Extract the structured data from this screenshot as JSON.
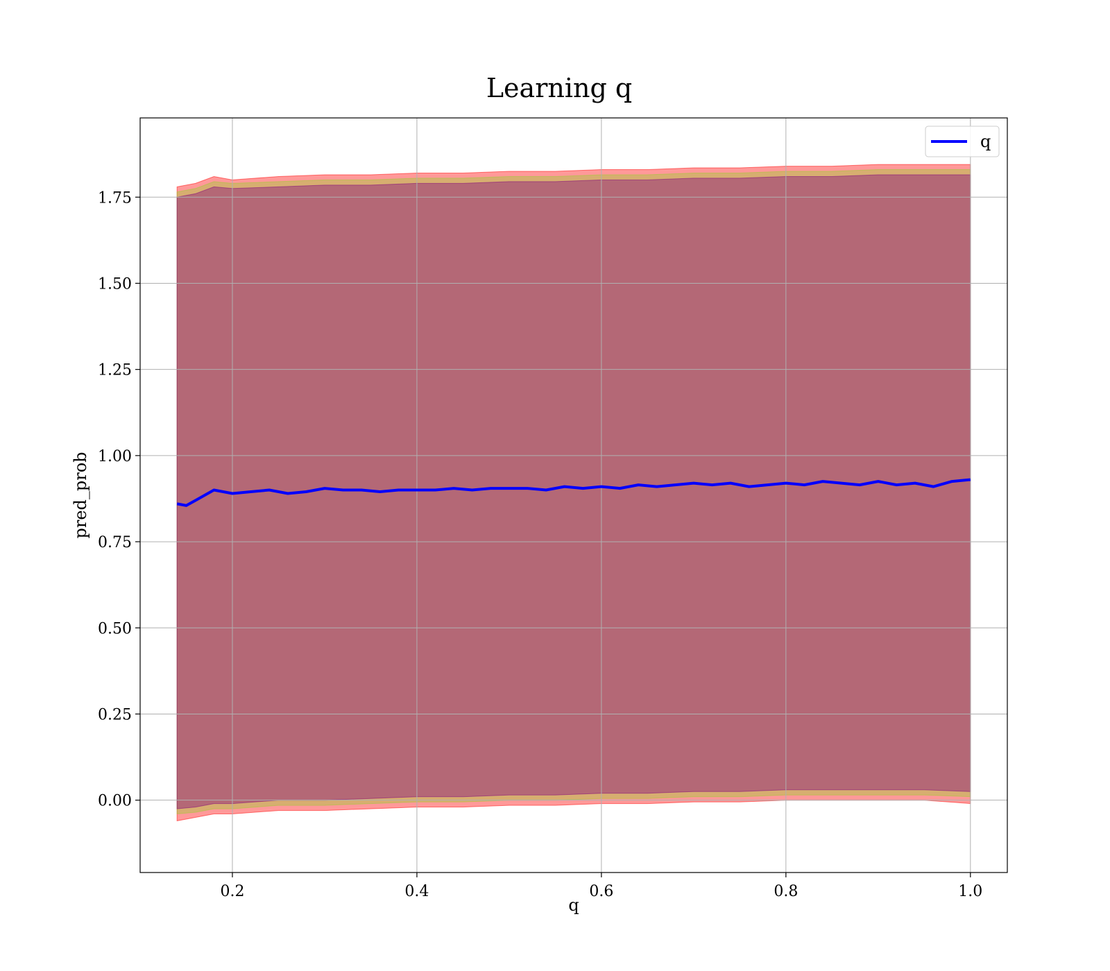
{
  "chart_data": {
    "type": "line",
    "title": "Learning q",
    "xlabel": "q",
    "ylabel": "pred_prob",
    "xlim": [
      0.1,
      1.04
    ],
    "ylim": [
      -0.21,
      1.98
    ],
    "xticks": [
      0.2,
      0.4,
      0.6,
      0.8,
      1.0
    ],
    "xtick_labels": [
      "0.2",
      "0.4",
      "0.6",
      "0.8",
      "1.0"
    ],
    "yticks": [
      0.0,
      0.25,
      0.5,
      0.75,
      1.0,
      1.25,
      1.5,
      1.75
    ],
    "ytick_labels": [
      "0.00",
      "0.25",
      "0.50",
      "0.75",
      "1.00",
      "1.25",
      "1.50",
      "1.75"
    ],
    "grid": true,
    "legend": {
      "position": "top-right",
      "entries": [
        {
          "label": "q",
          "color": "#0000ff"
        }
      ]
    },
    "series": [
      {
        "name": "q",
        "color": "#0000ff",
        "x": [
          0.14,
          0.15,
          0.16,
          0.17,
          0.18,
          0.2,
          0.22,
          0.24,
          0.26,
          0.28,
          0.3,
          0.32,
          0.34,
          0.36,
          0.38,
          0.4,
          0.42,
          0.44,
          0.46,
          0.48,
          0.5,
          0.52,
          0.54,
          0.56,
          0.58,
          0.6,
          0.62,
          0.64,
          0.66,
          0.68,
          0.7,
          0.72,
          0.74,
          0.76,
          0.78,
          0.8,
          0.82,
          0.84,
          0.86,
          0.88,
          0.9,
          0.92,
          0.94,
          0.96,
          0.98,
          1.0
        ],
        "y": [
          0.86,
          0.855,
          0.87,
          0.885,
          0.9,
          0.89,
          0.895,
          0.9,
          0.89,
          0.895,
          0.905,
          0.9,
          0.9,
          0.895,
          0.9,
          0.9,
          0.9,
          0.905,
          0.9,
          0.905,
          0.905,
          0.905,
          0.9,
          0.91,
          0.905,
          0.91,
          0.905,
          0.915,
          0.91,
          0.915,
          0.92,
          0.915,
          0.92,
          0.91,
          0.915,
          0.92,
          0.915,
          0.925,
          0.92,
          0.915,
          0.925,
          0.915,
          0.92,
          0.91,
          0.925,
          0.93
        ]
      }
    ],
    "bands": [
      {
        "color": "#ff0000",
        "opacity": 0.4,
        "x": [
          0.14,
          0.16,
          0.18,
          0.2,
          0.25,
          0.3,
          0.35,
          0.4,
          0.45,
          0.5,
          0.55,
          0.6,
          0.65,
          0.7,
          0.75,
          0.8,
          0.85,
          0.9,
          0.95,
          1.0
        ],
        "upper": [
          1.78,
          1.79,
          1.81,
          1.8,
          1.81,
          1.815,
          1.815,
          1.82,
          1.82,
          1.825,
          1.825,
          1.83,
          1.83,
          1.835,
          1.835,
          1.84,
          1.84,
          1.845,
          1.845,
          1.845
        ],
        "lower": [
          -0.06,
          -0.05,
          -0.04,
          -0.04,
          -0.03,
          -0.03,
          -0.025,
          -0.02,
          -0.02,
          -0.015,
          -0.015,
          -0.01,
          -0.01,
          -0.005,
          -0.005,
          0.0,
          0.0,
          0.0,
          0.0,
          -0.01
        ]
      },
      {
        "color": "#9acd32",
        "opacity": 0.4,
        "x": [
          0.14,
          0.16,
          0.18,
          0.2,
          0.25,
          0.3,
          0.35,
          0.4,
          0.45,
          0.5,
          0.55,
          0.6,
          0.65,
          0.7,
          0.75,
          0.8,
          0.85,
          0.9,
          0.95,
          1.0
        ],
        "upper": [
          1.765,
          1.775,
          1.795,
          1.79,
          1.795,
          1.8,
          1.8,
          1.805,
          1.805,
          1.81,
          1.81,
          1.815,
          1.815,
          1.82,
          1.82,
          1.825,
          1.825,
          1.83,
          1.83,
          1.83
        ],
        "lower": [
          -0.04,
          -0.035,
          -0.025,
          -0.025,
          -0.015,
          -0.015,
          -0.01,
          -0.005,
          -0.005,
          0.0,
          0.0,
          0.005,
          0.005,
          0.01,
          0.01,
          0.015,
          0.015,
          0.015,
          0.015,
          0.01
        ]
      },
      {
        "color": "#800080",
        "opacity": 0.4,
        "x": [
          0.14,
          0.16,
          0.18,
          0.2,
          0.25,
          0.3,
          0.35,
          0.4,
          0.45,
          0.5,
          0.55,
          0.6,
          0.65,
          0.7,
          0.75,
          0.8,
          0.85,
          0.9,
          0.95,
          1.0
        ],
        "upper": [
          1.75,
          1.76,
          1.78,
          1.775,
          1.78,
          1.785,
          1.785,
          1.79,
          1.79,
          1.795,
          1.795,
          1.8,
          1.8,
          1.805,
          1.805,
          1.81,
          1.81,
          1.815,
          1.815,
          1.815
        ],
        "lower": [
          -0.025,
          -0.02,
          -0.01,
          -0.01,
          0.0,
          0.0,
          0.005,
          0.01,
          0.01,
          0.015,
          0.015,
          0.02,
          0.02,
          0.025,
          0.025,
          0.03,
          0.03,
          0.03,
          0.03,
          0.025
        ]
      }
    ]
  }
}
